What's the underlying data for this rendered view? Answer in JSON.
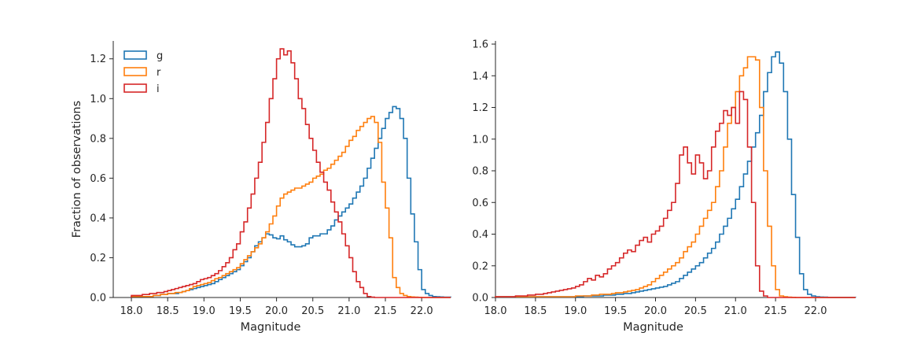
{
  "colors": {
    "g": "#1f77b4",
    "r": "#ff7f0e",
    "i": "#d62728"
  },
  "legend": [
    {
      "label": "g",
      "color_key": "g"
    },
    {
      "label": "r",
      "color_key": "r"
    },
    {
      "label": "i",
      "color_key": "i"
    }
  ],
  "chart_data": [
    {
      "type": "histogram-step",
      "xlabel": "Magnitude",
      "ylabel": "Fraction of observations",
      "xlim": [
        17.75,
        22.15
      ],
      "ylim": [
        0,
        1.29
      ],
      "xticks": [
        "18.0",
        "18.5",
        "19.0",
        "19.5",
        "20.0",
        "20.5",
        "21.0",
        "21.5",
        "22.0"
      ],
      "yticks": [
        "0.0",
        "0.2",
        "0.4",
        "0.6",
        "0.8",
        "1.0",
        "1.2"
      ],
      "bin_start": 18.0,
      "bin_width": 0.05,
      "legend_position": "top-left",
      "series": [
        {
          "name": "g",
          "values": [
            0.005,
            0.005,
            0.005,
            0.005,
            0.005,
            0.005,
            0.01,
            0.01,
            0.015,
            0.015,
            0.02,
            0.02,
            0.02,
            0.025,
            0.03,
            0.035,
            0.04,
            0.045,
            0.05,
            0.055,
            0.06,
            0.065,
            0.07,
            0.08,
            0.09,
            0.1,
            0.11,
            0.12,
            0.13,
            0.14,
            0.16,
            0.18,
            0.2,
            0.23,
            0.26,
            0.28,
            0.3,
            0.32,
            0.315,
            0.3,
            0.295,
            0.31,
            0.29,
            0.28,
            0.265,
            0.255,
            0.255,
            0.26,
            0.27,
            0.3,
            0.31,
            0.31,
            0.32,
            0.32,
            0.34,
            0.36,
            0.39,
            0.41,
            0.43,
            0.45,
            0.47,
            0.5,
            0.53,
            0.56,
            0.6,
            0.65,
            0.7,
            0.75,
            0.8,
            0.85,
            0.9,
            0.93,
            0.96,
            0.95,
            0.9,
            0.8,
            0.6,
            0.42,
            0.28,
            0.14,
            0.04,
            0.02,
            0.01,
            0.005,
            0.004,
            0.003,
            0.002,
            0.002
          ]
        },
        {
          "name": "r",
          "values": [
            0.005,
            0.005,
            0.005,
            0.005,
            0.005,
            0.005,
            0.01,
            0.01,
            0.015,
            0.015,
            0.02,
            0.02,
            0.025,
            0.025,
            0.03,
            0.035,
            0.045,
            0.055,
            0.06,
            0.065,
            0.07,
            0.075,
            0.085,
            0.095,
            0.1,
            0.11,
            0.12,
            0.13,
            0.14,
            0.15,
            0.17,
            0.19,
            0.21,
            0.23,
            0.25,
            0.27,
            0.3,
            0.33,
            0.37,
            0.41,
            0.46,
            0.5,
            0.52,
            0.53,
            0.54,
            0.55,
            0.55,
            0.56,
            0.57,
            0.58,
            0.6,
            0.61,
            0.62,
            0.64,
            0.65,
            0.67,
            0.69,
            0.71,
            0.73,
            0.76,
            0.79,
            0.81,
            0.84,
            0.86,
            0.88,
            0.9,
            0.91,
            0.88,
            0.78,
            0.58,
            0.45,
            0.3,
            0.1,
            0.05,
            0.02,
            0.01,
            0.005,
            0.003,
            0.002,
            0.001,
            0,
            0,
            0,
            0,
            0,
            0,
            0,
            0
          ]
        },
        {
          "name": "i",
          "values": [
            0.01,
            0.01,
            0.01,
            0.015,
            0.015,
            0.02,
            0.02,
            0.025,
            0.025,
            0.03,
            0.035,
            0.04,
            0.045,
            0.05,
            0.055,
            0.06,
            0.065,
            0.07,
            0.08,
            0.09,
            0.095,
            0.1,
            0.11,
            0.12,
            0.135,
            0.155,
            0.175,
            0.2,
            0.24,
            0.27,
            0.33,
            0.38,
            0.45,
            0.52,
            0.6,
            0.68,
            0.78,
            0.88,
            1.0,
            1.1,
            1.2,
            1.25,
            1.22,
            1.24,
            1.18,
            1.1,
            1.0,
            0.95,
            0.87,
            0.8,
            0.74,
            0.68,
            0.63,
            0.58,
            0.54,
            0.48,
            0.43,
            0.38,
            0.32,
            0.26,
            0.2,
            0.13,
            0.08,
            0.05,
            0.02,
            0.005,
            0.002,
            0,
            0,
            0,
            0,
            0,
            0,
            0,
            0,
            0,
            0,
            0,
            0,
            0,
            0,
            0,
            0,
            0,
            0,
            0,
            0,
            0
          ]
        }
      ]
    },
    {
      "type": "histogram-step",
      "xlabel": "Magnitude",
      "ylabel": "",
      "xlim": [
        18.0,
        22.0
      ],
      "ylim": [
        0,
        1.62
      ],
      "xticks": [
        "18.0",
        "18.5",
        "19.0",
        "19.5",
        "20.0",
        "20.5",
        "21.0",
        "21.5",
        "22.0"
      ],
      "yticks": [
        "0.0",
        "0.2",
        "0.4",
        "0.6",
        "0.8",
        "1.0",
        "1.2",
        "1.4",
        "1.6"
      ],
      "bin_start": 18.0,
      "bin_width": 0.05,
      "series": [
        {
          "name": "g",
          "values": [
            0.005,
            0.005,
            0.005,
            0.005,
            0.005,
            0.005,
            0.005,
            0.005,
            0.005,
            0.005,
            0.005,
            0.005,
            0.005,
            0.005,
            0.005,
            0.005,
            0.005,
            0.005,
            0.005,
            0.005,
            0.005,
            0.005,
            0.01,
            0.01,
            0.01,
            0.01,
            0.01,
            0.015,
            0.015,
            0.015,
            0.02,
            0.02,
            0.025,
            0.025,
            0.03,
            0.035,
            0.04,
            0.045,
            0.05,
            0.055,
            0.06,
            0.065,
            0.07,
            0.08,
            0.09,
            0.1,
            0.12,
            0.14,
            0.16,
            0.18,
            0.2,
            0.22,
            0.25,
            0.28,
            0.31,
            0.35,
            0.4,
            0.45,
            0.5,
            0.56,
            0.62,
            0.7,
            0.78,
            0.86,
            0.95,
            1.04,
            1.15,
            1.3,
            1.42,
            1.52,
            1.55,
            1.48,
            1.3,
            1.0,
            0.65,
            0.38,
            0.15,
            0.05,
            0.02,
            0.01,
            0.005,
            0.003,
            0.002,
            0.001,
            0.001,
            0.001,
            0.001,
            0.001,
            0.001,
            0.001
          ]
        },
        {
          "name": "r",
          "values": [
            0.005,
            0.005,
            0.005,
            0.005,
            0.005,
            0.005,
            0.005,
            0.005,
            0.005,
            0.005,
            0.005,
            0.005,
            0.005,
            0.005,
            0.005,
            0.005,
            0.005,
            0.005,
            0.005,
            0.005,
            0.01,
            0.01,
            0.01,
            0.01,
            0.015,
            0.015,
            0.02,
            0.02,
            0.02,
            0.025,
            0.03,
            0.03,
            0.035,
            0.04,
            0.045,
            0.05,
            0.06,
            0.07,
            0.08,
            0.1,
            0.12,
            0.14,
            0.16,
            0.18,
            0.2,
            0.22,
            0.25,
            0.29,
            0.32,
            0.35,
            0.4,
            0.45,
            0.5,
            0.55,
            0.6,
            0.7,
            0.8,
            0.95,
            1.1,
            1.2,
            1.3,
            1.4,
            1.45,
            1.52,
            1.52,
            1.5,
            1.2,
            0.8,
            0.45,
            0.2,
            0.05,
            0.01,
            0.005,
            0.002,
            0.001,
            0,
            0,
            0,
            0,
            0,
            0,
            0,
            0,
            0,
            0,
            0,
            0,
            0,
            0,
            0
          ]
        },
        {
          "name": "i",
          "values": [
            0.005,
            0.005,
            0.005,
            0.005,
            0.005,
            0.01,
            0.01,
            0.01,
            0.015,
            0.015,
            0.02,
            0.02,
            0.025,
            0.03,
            0.035,
            0.04,
            0.045,
            0.05,
            0.055,
            0.06,
            0.07,
            0.08,
            0.1,
            0.12,
            0.11,
            0.14,
            0.13,
            0.15,
            0.18,
            0.2,
            0.22,
            0.25,
            0.28,
            0.3,
            0.29,
            0.33,
            0.36,
            0.38,
            0.35,
            0.4,
            0.42,
            0.45,
            0.5,
            0.55,
            0.6,
            0.72,
            0.9,
            0.95,
            0.85,
            0.78,
            0.9,
            0.85,
            0.75,
            0.8,
            0.95,
            1.05,
            1.1,
            1.18,
            1.15,
            1.2,
            1.1,
            1.3,
            1.25,
            0.95,
            0.6,
            0.2,
            0.04,
            0.01,
            0,
            0,
            0,
            0,
            0,
            0,
            0,
            0,
            0,
            0,
            0,
            0,
            0,
            0,
            0,
            0,
            0,
            0,
            0,
            0,
            0,
            0
          ]
        }
      ]
    }
  ]
}
